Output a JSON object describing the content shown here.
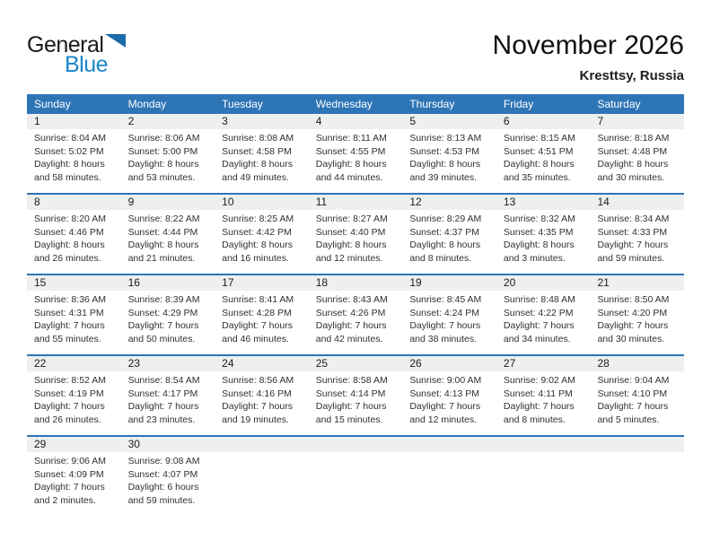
{
  "logo": {
    "text_black": "General",
    "text_blue": "Blue"
  },
  "page": {
    "title": "November 2026",
    "location": "Kresttsy, Russia"
  },
  "colors": {
    "header_blue": "#2e75b6",
    "band_gray": "#efefef",
    "logo_blue": "#1886c9",
    "logo_triangle": "#1b6ca8"
  },
  "calendar": {
    "day_headers": [
      "Sunday",
      "Monday",
      "Tuesday",
      "Wednesday",
      "Thursday",
      "Friday",
      "Saturday"
    ],
    "weeks": [
      [
        {
          "day": "1",
          "lines": [
            "Sunrise: 8:04 AM",
            "Sunset: 5:02 PM",
            "Daylight: 8 hours",
            "and 58 minutes."
          ]
        },
        {
          "day": "2",
          "lines": [
            "Sunrise: 8:06 AM",
            "Sunset: 5:00 PM",
            "Daylight: 8 hours",
            "and 53 minutes."
          ]
        },
        {
          "day": "3",
          "lines": [
            "Sunrise: 8:08 AM",
            "Sunset: 4:58 PM",
            "Daylight: 8 hours",
            "and 49 minutes."
          ]
        },
        {
          "day": "4",
          "lines": [
            "Sunrise: 8:11 AM",
            "Sunset: 4:55 PM",
            "Daylight: 8 hours",
            "and 44 minutes."
          ]
        },
        {
          "day": "5",
          "lines": [
            "Sunrise: 8:13 AM",
            "Sunset: 4:53 PM",
            "Daylight: 8 hours",
            "and 39 minutes."
          ]
        },
        {
          "day": "6",
          "lines": [
            "Sunrise: 8:15 AM",
            "Sunset: 4:51 PM",
            "Daylight: 8 hours",
            "and 35 minutes."
          ]
        },
        {
          "day": "7",
          "lines": [
            "Sunrise: 8:18 AM",
            "Sunset: 4:48 PM",
            "Daylight: 8 hours",
            "and 30 minutes."
          ]
        }
      ],
      [
        {
          "day": "8",
          "lines": [
            "Sunrise: 8:20 AM",
            "Sunset: 4:46 PM",
            "Daylight: 8 hours",
            "and 26 minutes."
          ]
        },
        {
          "day": "9",
          "lines": [
            "Sunrise: 8:22 AM",
            "Sunset: 4:44 PM",
            "Daylight: 8 hours",
            "and 21 minutes."
          ]
        },
        {
          "day": "10",
          "lines": [
            "Sunrise: 8:25 AM",
            "Sunset: 4:42 PM",
            "Daylight: 8 hours",
            "and 16 minutes."
          ]
        },
        {
          "day": "11",
          "lines": [
            "Sunrise: 8:27 AM",
            "Sunset: 4:40 PM",
            "Daylight: 8 hours",
            "and 12 minutes."
          ]
        },
        {
          "day": "12",
          "lines": [
            "Sunrise: 8:29 AM",
            "Sunset: 4:37 PM",
            "Daylight: 8 hours",
            "and 8 minutes."
          ]
        },
        {
          "day": "13",
          "lines": [
            "Sunrise: 8:32 AM",
            "Sunset: 4:35 PM",
            "Daylight: 8 hours",
            "and 3 minutes."
          ]
        },
        {
          "day": "14",
          "lines": [
            "Sunrise: 8:34 AM",
            "Sunset: 4:33 PM",
            "Daylight: 7 hours",
            "and 59 minutes."
          ]
        }
      ],
      [
        {
          "day": "15",
          "lines": [
            "Sunrise: 8:36 AM",
            "Sunset: 4:31 PM",
            "Daylight: 7 hours",
            "and 55 minutes."
          ]
        },
        {
          "day": "16",
          "lines": [
            "Sunrise: 8:39 AM",
            "Sunset: 4:29 PM",
            "Daylight: 7 hours",
            "and 50 minutes."
          ]
        },
        {
          "day": "17",
          "lines": [
            "Sunrise: 8:41 AM",
            "Sunset: 4:28 PM",
            "Daylight: 7 hours",
            "and 46 minutes."
          ]
        },
        {
          "day": "18",
          "lines": [
            "Sunrise: 8:43 AM",
            "Sunset: 4:26 PM",
            "Daylight: 7 hours",
            "and 42 minutes."
          ]
        },
        {
          "day": "19",
          "lines": [
            "Sunrise: 8:45 AM",
            "Sunset: 4:24 PM",
            "Daylight: 7 hours",
            "and 38 minutes."
          ]
        },
        {
          "day": "20",
          "lines": [
            "Sunrise: 8:48 AM",
            "Sunset: 4:22 PM",
            "Daylight: 7 hours",
            "and 34 minutes."
          ]
        },
        {
          "day": "21",
          "lines": [
            "Sunrise: 8:50 AM",
            "Sunset: 4:20 PM",
            "Daylight: 7 hours",
            "and 30 minutes."
          ]
        }
      ],
      [
        {
          "day": "22",
          "lines": [
            "Sunrise: 8:52 AM",
            "Sunset: 4:19 PM",
            "Daylight: 7 hours",
            "and 26 minutes."
          ]
        },
        {
          "day": "23",
          "lines": [
            "Sunrise: 8:54 AM",
            "Sunset: 4:17 PM",
            "Daylight: 7 hours",
            "and 23 minutes."
          ]
        },
        {
          "day": "24",
          "lines": [
            "Sunrise: 8:56 AM",
            "Sunset: 4:16 PM",
            "Daylight: 7 hours",
            "and 19 minutes."
          ]
        },
        {
          "day": "25",
          "lines": [
            "Sunrise: 8:58 AM",
            "Sunset: 4:14 PM",
            "Daylight: 7 hours",
            "and 15 minutes."
          ]
        },
        {
          "day": "26",
          "lines": [
            "Sunrise: 9:00 AM",
            "Sunset: 4:13 PM",
            "Daylight: 7 hours",
            "and 12 minutes."
          ]
        },
        {
          "day": "27",
          "lines": [
            "Sunrise: 9:02 AM",
            "Sunset: 4:11 PM",
            "Daylight: 7 hours",
            "and 8 minutes."
          ]
        },
        {
          "day": "28",
          "lines": [
            "Sunrise: 9:04 AM",
            "Sunset: 4:10 PM",
            "Daylight: 7 hours",
            "and 5 minutes."
          ]
        }
      ],
      [
        {
          "day": "29",
          "lines": [
            "Sunrise: 9:06 AM",
            "Sunset: 4:09 PM",
            "Daylight: 7 hours",
            "and 2 minutes."
          ]
        },
        {
          "day": "30",
          "lines": [
            "Sunrise: 9:08 AM",
            "Sunset: 4:07 PM",
            "Daylight: 6 hours",
            "and 59 minutes."
          ]
        },
        null,
        null,
        null,
        null,
        null
      ]
    ]
  }
}
